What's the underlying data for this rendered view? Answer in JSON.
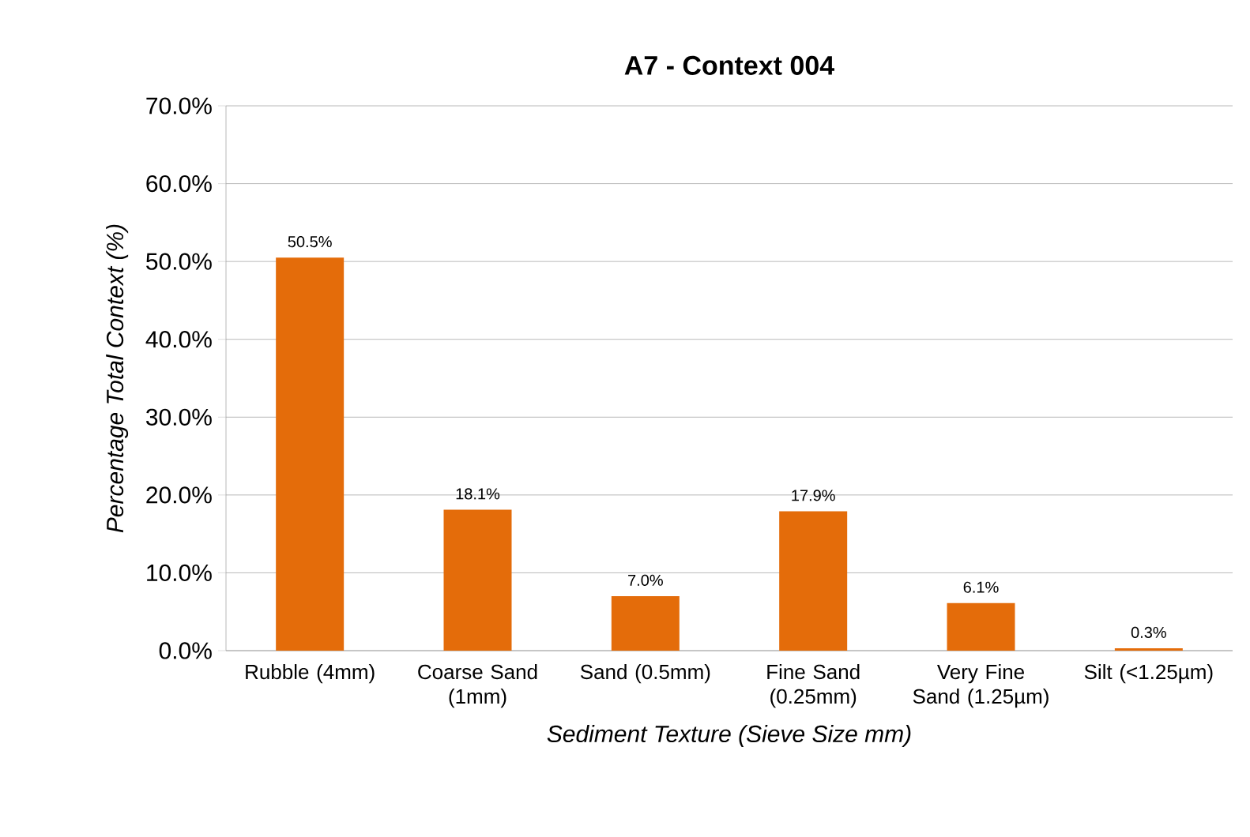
{
  "chart_data": {
    "type": "bar",
    "title": "A7 - Context 004",
    "xlabel": "Sediment Texture (Sieve Size mm)",
    "ylabel": "Percentage Total Context (%)",
    "categories": [
      "Rubble (4mm)",
      "Coarse Sand (1mm)",
      "Sand (0.5mm)",
      "Fine Sand (0.25mm)",
      "Very Fine Sand (1.25µm)",
      "Silt (<1.25µm)"
    ],
    "values": [
      50.5,
      18.1,
      7.0,
      17.9,
      6.1,
      0.3
    ],
    "value_labels": [
      "50.5%",
      "18.1%",
      "7.0%",
      "17.9%",
      "6.1%",
      "0.3%"
    ],
    "color": "#e46c0a",
    "ylim": [
      0,
      70
    ],
    "yticks": [
      {
        "value": 0,
        "label": "0.0%"
      },
      {
        "value": 10,
        "label": "10.0%"
      },
      {
        "value": 20,
        "label": "20.0%"
      },
      {
        "value": 30,
        "label": "30.0%"
      },
      {
        "value": 40,
        "label": "40.0%"
      },
      {
        "value": 50,
        "label": "50.0%"
      },
      {
        "value": 60,
        "label": "60.0%"
      },
      {
        "value": 70,
        "label": "70.0%"
      }
    ],
    "grid": "y"
  }
}
